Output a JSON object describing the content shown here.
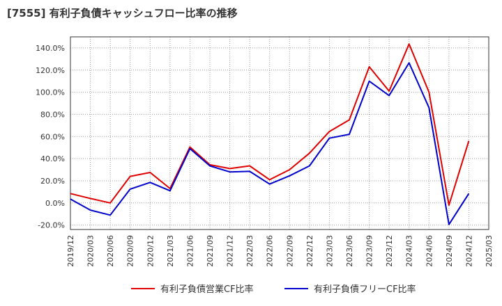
{
  "chart_data": {
    "type": "line",
    "title": "[7555]  有利子負債キャッシュフロー比率の推移",
    "x": [
      "2019/12",
      "2020/03",
      "2020/06",
      "2020/09",
      "2020/12",
      "2021/03",
      "2021/06",
      "2021/09",
      "2021/12",
      "2022/03",
      "2022/06",
      "2022/09",
      "2022/12",
      "2023/03",
      "2023/06",
      "2023/09",
      "2023/12",
      "2024/03",
      "2024/06",
      "2024/09",
      "2024/12",
      "2025/03"
    ],
    "ylim": [
      -24,
      150
    ],
    "yticks": [
      -20,
      0,
      20,
      40,
      60,
      80,
      100,
      120,
      140
    ],
    "ytick_labels": [
      "-20.0%",
      "0.0%",
      "20.0%",
      "40.0%",
      "60.0%",
      "80.0%",
      "100.0%",
      "120.0%",
      "140.0%"
    ],
    "grid": true,
    "legend_position": "bottom",
    "series": [
      {
        "name": "有利子負債営業CF比率",
        "color": "#e00000",
        "values": [
          8.5,
          4.0,
          0.0,
          24.0,
          27.5,
          13.0,
          50.5,
          34.5,
          31.0,
          33.5,
          21.0,
          30.0,
          45.0,
          64.5,
          75.0,
          123.0,
          101.0,
          143.5,
          100.0,
          -2.0,
          56.0,
          null
        ]
      },
      {
        "name": "有利子負債フリーCF比率",
        "color": "#0000cc",
        "values": [
          3.5,
          -6.5,
          -11.0,
          12.5,
          18.5,
          11.0,
          49.0,
          33.5,
          28.0,
          28.5,
          17.0,
          24.5,
          33.5,
          58.5,
          62.0,
          110.0,
          97.0,
          126.5,
          86.0,
          -19.5,
          8.5,
          null
        ]
      }
    ]
  }
}
